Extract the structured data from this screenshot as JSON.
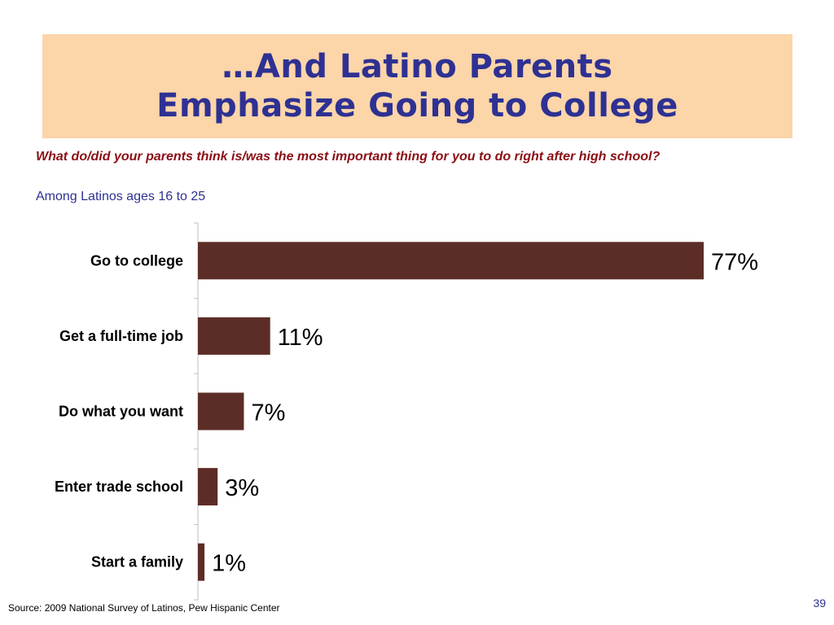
{
  "slide": {
    "title_line1": "…And Latino Parents",
    "title_line2": "Emphasize Going to College",
    "question": "What do/did your parents think is/was the most important thing for you to do right after high school?",
    "subtitle": "Among Latinos ages 16 to 25",
    "source": "Source: 2009 National Survey of Latinos, Pew Hispanic Center",
    "page_number": "39"
  },
  "colors": {
    "bar": "#5c2d26",
    "title": "#2e3192",
    "title_box": "#fcd5a9",
    "question": "#8b0f15"
  },
  "chart_data": {
    "type": "bar",
    "orientation": "horizontal",
    "categories": [
      "Go to college",
      "Get a full-time job",
      "Do what you want",
      "Enter trade school",
      "Start a family"
    ],
    "values": [
      77,
      11,
      7,
      3,
      1
    ],
    "value_labels": [
      "77%",
      "11%",
      "7%",
      "3%",
      "1%"
    ],
    "xlim": [
      0,
      77
    ],
    "grid": false,
    "legend": "none"
  }
}
